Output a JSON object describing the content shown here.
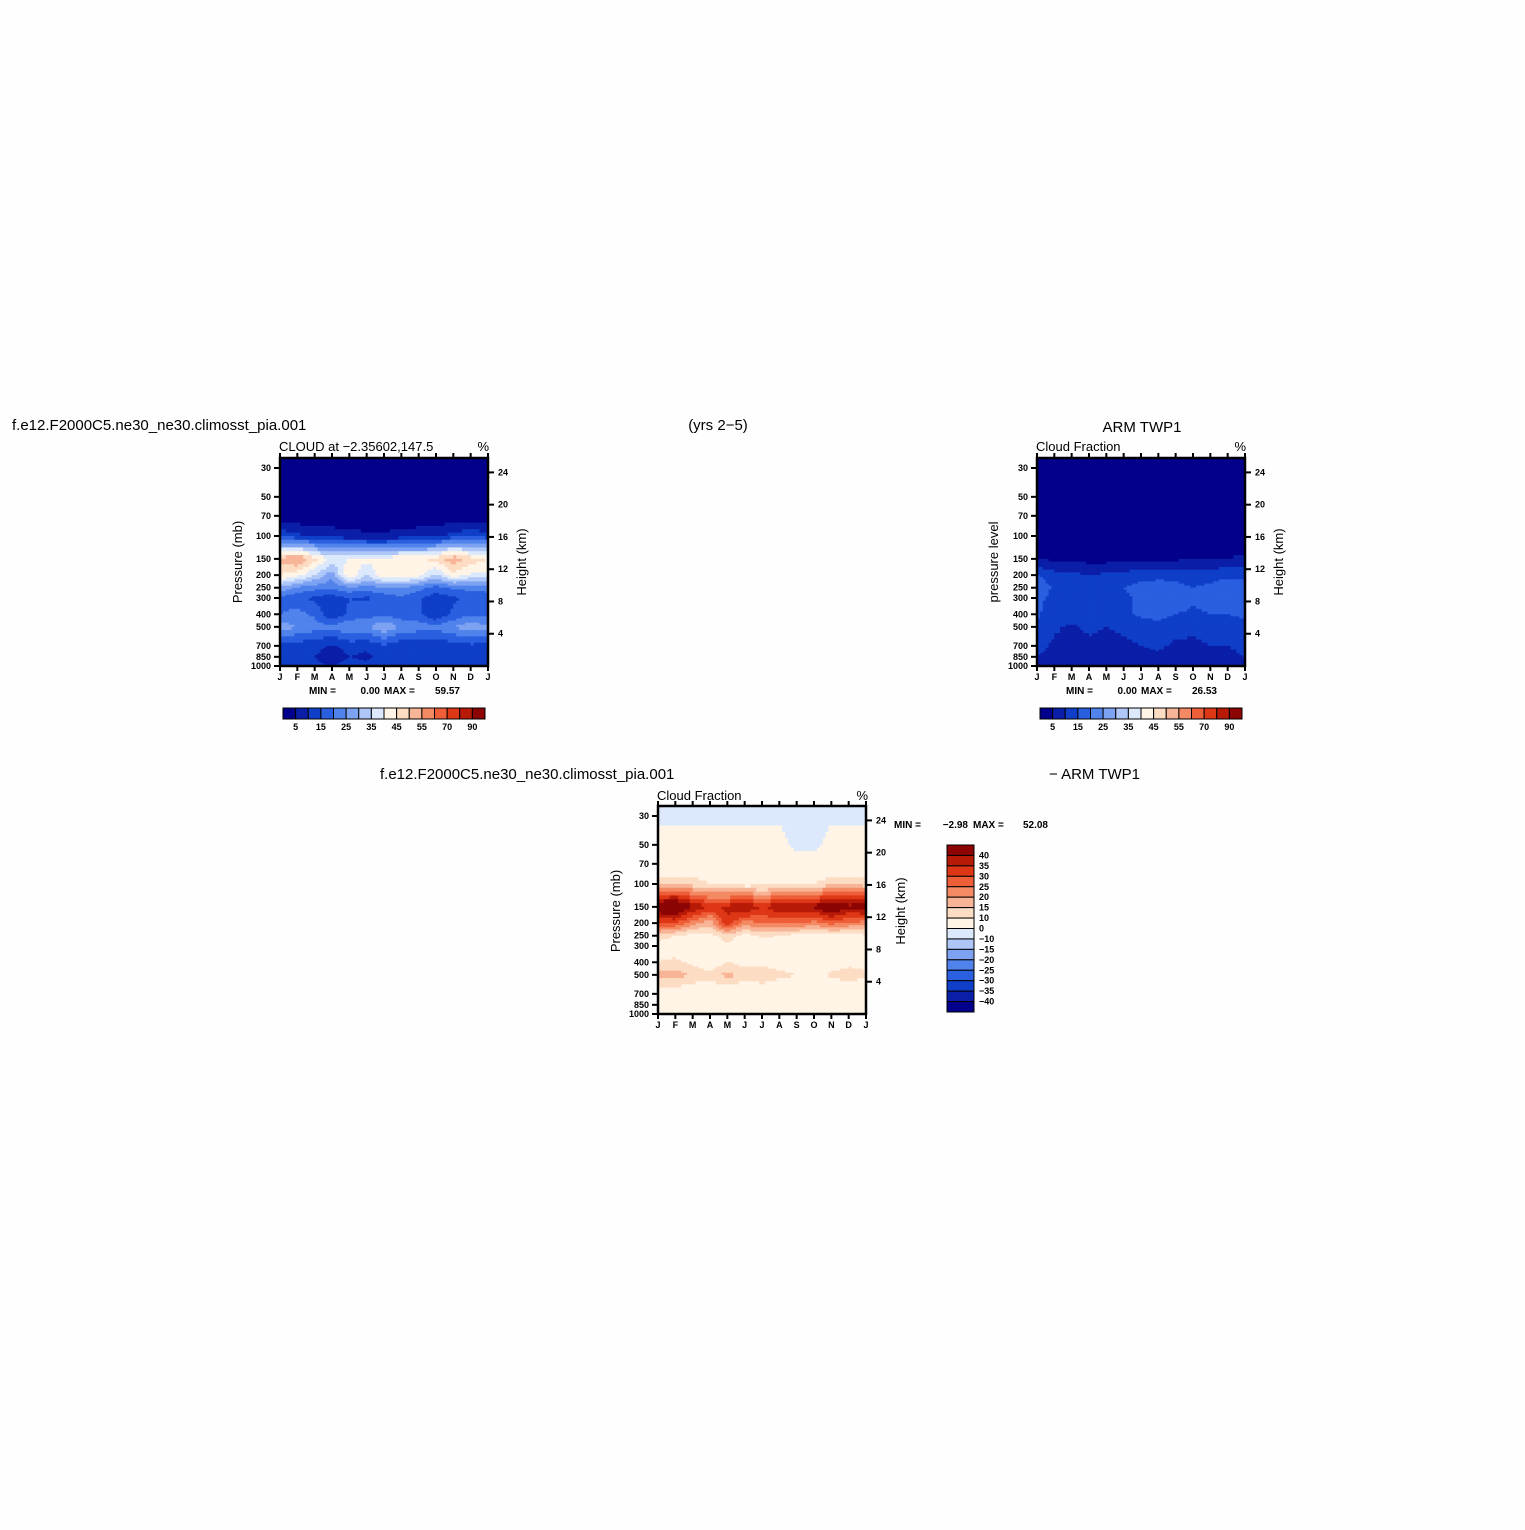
{
  "header": {
    "model_case": "f.e12.F2000C5.ne30_ne30.climosst_pia.001",
    "years": "(yrs 2−5)",
    "obs_title": "ARM  TWP1",
    "diff_suffix": "− ARM  TWP1"
  },
  "months": [
    "J",
    "F",
    "M",
    "A",
    "M",
    "J",
    "J",
    "A",
    "S",
    "O",
    "N",
    "D",
    "J"
  ],
  "pressure_ticks": [
    "30",
    "50",
    "70",
    "100",
    "150",
    "200",
    "250",
    "300",
    "400",
    "500",
    "700",
    "850",
    "1000"
  ],
  "height_ticks": [
    "24",
    "20",
    "16",
    "12",
    "8",
    "4"
  ],
  "panels": {
    "model": {
      "subtitle": "CLOUD  at  −2.35602,147.5",
      "units": "%",
      "ylabel": "Pressure  (mb)",
      "ylabel_right": "Height  (km)",
      "min_label": "MIN  =",
      "min_value": "0.00",
      "max_label": "MAX  =",
      "max_value": "59.57"
    },
    "obs": {
      "subtitle": "Cloud  Fraction",
      "units": "%",
      "ylabel": "pressure  level",
      "ylabel_right": "Height  (km)",
      "min_label": "MIN  =",
      "min_value": "0.00",
      "max_label": "MAX  =",
      "max_value": "26.53"
    },
    "diff": {
      "subtitle": "Cloud  Fraction",
      "units": "%",
      "ylabel": "Pressure  (mb)",
      "ylabel_right": "Height  (km)",
      "min_label": "MIN  =",
      "min_value": "−2.98",
      "max_label": "MAX  =",
      "max_value": "52.08"
    }
  },
  "colorbar_abs": {
    "labels": [
      "5",
      "15",
      "25",
      "35",
      "45",
      "55",
      "70",
      "90"
    ],
    "colors": [
      "#03008b",
      "#0a1ea8",
      "#0f3fc8",
      "#2a5fe0",
      "#5183ec",
      "#7ea2f2",
      "#aec6f8",
      "#dce9fc",
      "#fff4e6",
      "#fddcc4",
      "#f8b496",
      "#f38a63",
      "#ee5e38",
      "#de3716",
      "#b81a08",
      "#8c0404"
    ]
  },
  "colorbar_diff": {
    "labels": [
      "40",
      "35",
      "30",
      "25",
      "20",
      "15",
      "10",
      "0",
      "−10",
      "−15",
      "−20",
      "−25",
      "−30",
      "−35",
      "−40"
    ],
    "colors": [
      "#8c0404",
      "#b81a08",
      "#de3716",
      "#ee5e38",
      "#f38a63",
      "#f8b496",
      "#fddcc4",
      "#fff4e6",
      "#dce9fc",
      "#aec6f8",
      "#7ea2f2",
      "#5183ec",
      "#2a5fe0",
      "#0f3fc8",
      "#0a1ea8",
      "#03008b"
    ]
  },
  "chart_data": [
    {
      "type": "heatmap",
      "title": "CLOUD  at  −2.35602,147.5",
      "xlabel": "",
      "ylabel": "Pressure  (mb)",
      "x": [
        "J",
        "F",
        "M",
        "A",
        "M",
        "J",
        "J",
        "A",
        "S",
        "O",
        "N",
        "D",
        "J"
      ],
      "y": [
        30,
        50,
        70,
        100,
        150,
        200,
        250,
        300,
        400,
        500,
        700,
        850,
        1000
      ],
      "zmin": 0.0,
      "zmax": 59.57,
      "levels": [
        0,
        5,
        10,
        15,
        20,
        25,
        30,
        35,
        40,
        45,
        50,
        55,
        60,
        70,
        80,
        90,
        100
      ],
      "z": [
        [
          0,
          0,
          0,
          0,
          0,
          0,
          0,
          0,
          0,
          0,
          0,
          0,
          0
        ],
        [
          0,
          0,
          0,
          0,
          0,
          0,
          0,
          0,
          0,
          0,
          0,
          0,
          0
        ],
        [
          1,
          1,
          1,
          1,
          1,
          1,
          1,
          1,
          1,
          1,
          1,
          1,
          1
        ],
        [
          14,
          11,
          9,
          8,
          7,
          6,
          6,
          7,
          8,
          9,
          12,
          14,
          12
        ],
        [
          52,
          56,
          47,
          38,
          40,
          42,
          41,
          45,
          44,
          47,
          54,
          48,
          45
        ],
        [
          45,
          42,
          35,
          27,
          46,
          35,
          45,
          44,
          42,
          34,
          43,
          39,
          39
        ],
        [
          29,
          24,
          22,
          21,
          24,
          23,
          24,
          25,
          22,
          18,
          21,
          22,
          23
        ],
        [
          18,
          16,
          14,
          12,
          15,
          14,
          17,
          19,
          16,
          12,
          14,
          16,
          16
        ],
        [
          20,
          22,
          19,
          10,
          16,
          18,
          18,
          17,
          16,
          10,
          16,
          19,
          18
        ],
        [
          28,
          25,
          22,
          21,
          25,
          24,
          30,
          24,
          23,
          21,
          25,
          28,
          26
        ],
        [
          14,
          12,
          12,
          9,
          12,
          11,
          14,
          11,
          10,
          12,
          12,
          14,
          13
        ],
        [
          14,
          12,
          10,
          7,
          10,
          9,
          11,
          10,
          10,
          12,
          12,
          14,
          13
        ],
        [
          15,
          13,
          11,
          10,
          12,
          11,
          13,
          12,
          12,
          13,
          13,
          15,
          14
        ]
      ]
    },
    {
      "type": "heatmap",
      "title": "Cloud  Fraction",
      "xlabel": "",
      "ylabel": "pressure  level",
      "x": [
        "J",
        "F",
        "M",
        "A",
        "M",
        "J",
        "J",
        "A",
        "S",
        "O",
        "N",
        "D",
        "J"
      ],
      "y": [
        30,
        50,
        70,
        100,
        150,
        200,
        250,
        300,
        400,
        500,
        700,
        850,
        1000
      ],
      "zmin": 0.0,
      "zmax": 26.53,
      "levels": [
        0,
        5,
        10,
        15,
        20,
        25,
        30,
        35,
        40,
        45,
        50,
        55,
        60,
        70,
        80,
        90,
        100
      ],
      "z": [
        [
          0,
          0,
          0,
          0,
          0,
          0,
          0,
          0,
          0,
          0,
          0,
          0,
          0
        ],
        [
          0,
          0,
          0,
          0,
          0,
          0,
          0,
          0,
          0,
          0,
          0,
          0,
          0
        ],
        [
          0,
          0,
          0,
          0,
          0,
          0,
          0,
          0,
          0,
          0,
          0,
          0,
          0
        ],
        [
          1,
          1,
          1,
          1,
          1,
          1,
          1,
          1,
          1,
          1,
          1,
          1,
          1
        ],
        [
          5,
          4,
          4,
          3,
          3,
          3,
          3,
          4,
          4,
          5,
          5,
          5,
          6
        ],
        [
          15,
          12,
          11,
          10,
          11,
          12,
          13,
          13,
          14,
          13,
          13,
          14,
          14
        ],
        [
          19,
          14,
          12,
          12,
          13,
          15,
          17,
          18,
          16,
          15,
          16,
          18,
          17
        ],
        [
          17,
          13,
          12,
          11,
          12,
          14,
          16,
          17,
          18,
          16,
          17,
          18,
          16
        ],
        [
          16,
          11,
          13,
          11,
          12,
          14,
          16,
          17,
          15,
          14,
          15,
          15,
          16
        ],
        [
          14,
          11,
          9,
          11,
          10,
          11,
          12,
          13,
          12,
          11,
          12,
          12,
          13
        ],
        [
          12,
          9,
          7,
          9,
          8,
          9,
          10,
          11,
          9,
          9,
          10,
          10,
          11
        ],
        [
          10,
          8,
          7,
          7,
          7,
          7,
          8,
          9,
          7,
          8,
          9,
          9,
          10
        ],
        [
          9,
          8,
          8,
          8,
          8,
          8,
          9,
          9,
          8,
          9,
          9,
          9,
          10
        ]
      ]
    },
    {
      "type": "heatmap",
      "title": "Cloud  Fraction",
      "xlabel": "",
      "ylabel": "Pressure  (mb)",
      "x": [
        "J",
        "F",
        "M",
        "A",
        "M",
        "J",
        "J",
        "A",
        "S",
        "O",
        "N",
        "D",
        "J"
      ],
      "y": [
        30,
        50,
        70,
        100,
        150,
        200,
        250,
        300,
        400,
        500,
        700,
        850,
        1000
      ],
      "zmin": -2.98,
      "zmax": 52.08,
      "levels": [
        -45,
        -40,
        -35,
        -30,
        -25,
        -20,
        -15,
        -10,
        0,
        10,
        15,
        20,
        25,
        30,
        35,
        40,
        100
      ],
      "z": [
        [
          -2,
          -2,
          -2,
          -2,
          -2,
          -2,
          -2,
          -2,
          -2,
          -2,
          -2,
          -2,
          -2
        ],
        [
          2,
          2,
          2,
          2,
          2,
          2,
          2,
          2,
          -2,
          -2,
          2,
          2,
          2
        ],
        [
          4,
          4,
          4,
          4,
          4,
          4,
          4,
          4,
          4,
          4,
          4,
          4,
          4
        ],
        [
          14,
          14,
          13,
          10,
          9,
          7,
          8,
          8,
          9,
          10,
          13,
          14,
          12
        ],
        [
          47,
          51,
          40,
          34,
          36,
          42,
          34,
          40,
          38,
          41,
          48,
          42,
          44
        ],
        [
          29,
          30,
          22,
          17,
          34,
          22,
          26,
          25,
          26,
          23,
          27,
          24,
          23
        ],
        [
          14,
          10,
          8,
          8,
          13,
          8,
          11,
          10,
          8,
          6,
          7,
          8,
          9
        ],
        [
          6,
          5,
          4,
          4,
          9,
          4,
          6,
          6,
          4,
          2,
          4,
          4,
          4
        ],
        [
          10,
          12,
          8,
          5,
          10,
          8,
          8,
          6,
          5,
          4,
          7,
          8,
          8
        ],
        [
          18,
          17,
          15,
          12,
          17,
          13,
          14,
          12,
          10,
          8,
          11,
          13,
          11
        ],
        [
          6,
          6,
          4,
          4,
          5,
          4,
          5,
          3,
          3,
          4,
          4,
          4,
          4
        ],
        [
          4,
          3,
          3,
          3,
          3,
          3,
          3,
          3,
          3,
          3,
          3,
          3,
          3
        ],
        [
          2,
          3,
          3,
          3,
          3,
          3,
          4,
          4,
          3,
          3,
          3,
          3,
          2
        ]
      ]
    }
  ]
}
